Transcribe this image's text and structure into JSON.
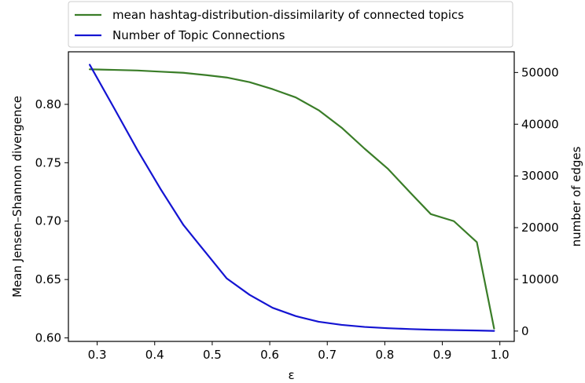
{
  "chart_data": {
    "type": "line",
    "xlabel": "ε",
    "ylabel_left": "Mean Jensen–Shannon divergence",
    "ylabel_right": "number of edges",
    "xlim": [
      0.25,
      1.025
    ],
    "ylim_left": [
      0.597,
      0.845
    ],
    "ylim_right": [
      -2000,
      54000
    ],
    "xticks": [
      0.3,
      0.4,
      0.5,
      0.6,
      0.7,
      0.8,
      0.9,
      1.0
    ],
    "xtick_labels": [
      "0.3",
      "0.4",
      "0.5",
      "0.6",
      "0.7",
      "0.8",
      "0.9",
      "1.0"
    ],
    "yticks_left": [
      0.6,
      0.65,
      0.7,
      0.75,
      0.8
    ],
    "ytick_labels_left": [
      "0.60",
      "0.65",
      "0.70",
      "0.75",
      "0.80"
    ],
    "yticks_right": [
      0,
      10000,
      20000,
      30000,
      40000,
      50000
    ],
    "ytick_labels_right": [
      "0",
      "10000",
      "20000",
      "30000",
      "40000",
      "50000"
    ],
    "legend_position": "top-center-outside",
    "series": [
      {
        "name": "mean hashtag-distribution-dissimilarity of connected topics",
        "axis": "left",
        "color": "#3a7d28",
        "x": [
          0.287,
          0.33,
          0.37,
          0.41,
          0.45,
          0.49,
          0.525,
          0.565,
          0.605,
          0.645,
          0.685,
          0.725,
          0.765,
          0.805,
          0.845,
          0.88,
          0.92,
          0.96,
          0.99
        ],
        "y": [
          0.83,
          0.8295,
          0.829,
          0.828,
          0.827,
          0.825,
          0.823,
          0.819,
          0.813,
          0.806,
          0.795,
          0.78,
          0.762,
          0.745,
          0.724,
          0.706,
          0.7,
          0.682,
          0.608
        ]
      },
      {
        "name": "Number of Topic Connections",
        "axis": "right",
        "color": "#1414d2",
        "x": [
          0.287,
          0.33,
          0.37,
          0.41,
          0.45,
          0.49,
          0.525,
          0.565,
          0.605,
          0.645,
          0.685,
          0.725,
          0.765,
          0.805,
          0.845,
          0.88,
          0.92,
          0.96,
          0.99
        ],
        "y": [
          51500,
          43000,
          35000,
          27500,
          20500,
          15000,
          10200,
          7000,
          4500,
          2900,
          1800,
          1200,
          800,
          550,
          380,
          260,
          180,
          100,
          30
        ]
      }
    ]
  }
}
